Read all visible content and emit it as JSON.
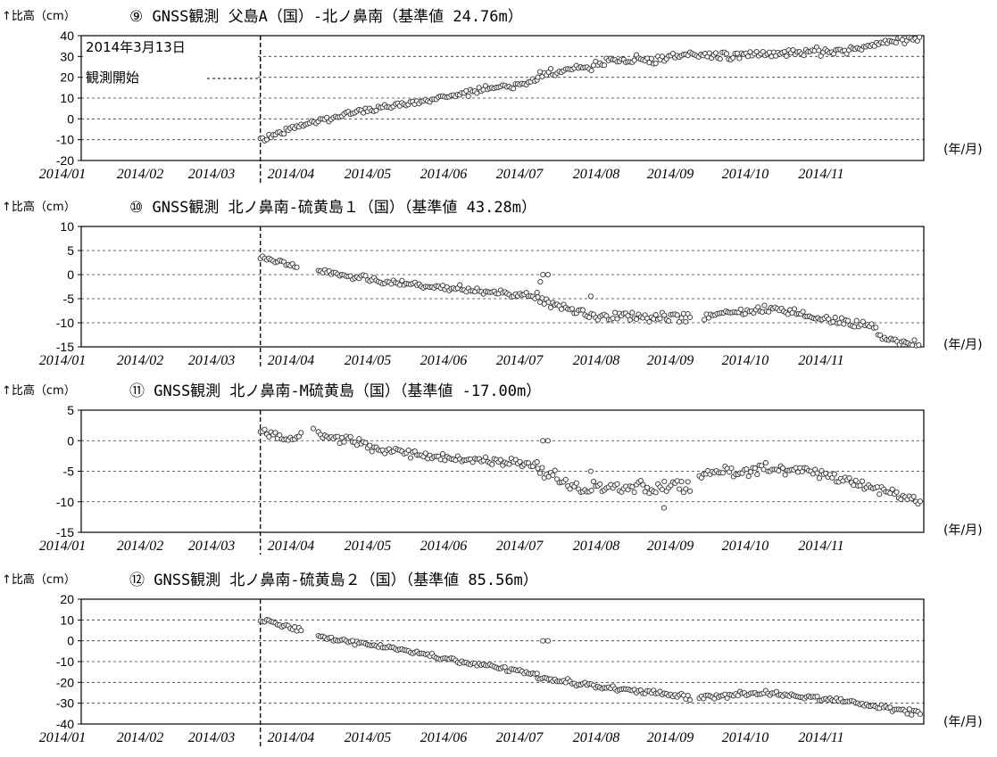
{
  "start_annotation": {
    "line1": "2014年3月13日",
    "line2": "観測開始"
  },
  "chart_data": [
    {
      "type": "scatter",
      "marker": "▯",
      "title": "⑨ GNSS観測 父島A（国）-北ノ鼻南（基準値 24.76m）",
      "ylabel": "↑比高（cm）",
      "xunit": "(年/月)",
      "x_ticks": [
        "2014/01",
        "2014/02",
        "2014/03",
        "2014/04",
        "2014/05",
        "2014/06",
        "2014/07",
        "2014/08",
        "2014/09",
        "2014/10",
        "2014/11"
      ],
      "y_ticks": [
        40,
        30,
        20,
        10,
        0,
        -10,
        -20
      ],
      "ylim": [
        -20,
        40
      ],
      "xlim": [
        "2014-01-01",
        "2014-12-01"
      ],
      "grid": "horizontal dashed",
      "observation_start": "2014-03-13",
      "series": [
        {
          "segments": [
            {
              "start": "2014-03-13",
              "end": "2014-07-01",
              "points": [
                [
                  "2014-03-13",
                  -10
                ],
                [
                  "2014-03-25",
                  -5
                ],
                [
                  "2014-04-01",
                  -2
                ],
                [
                  "2014-04-15",
                  2
                ],
                [
                  "2014-05-01",
                  6
                ],
                [
                  "2014-05-15",
                  8
                ],
                [
                  "2014-06-01",
                  12
                ],
                [
                  "2014-06-15",
                  15
                ],
                [
                  "2014-07-01",
                  18
                ]
              ],
              "noise": 1.2
            },
            {
              "start": "2014-07-01",
              "end": "2014-11-30",
              "points": [
                [
                  "2014-07-01",
                  21
                ],
                [
                  "2014-07-20",
                  25
                ],
                [
                  "2014-08-01",
                  28
                ],
                [
                  "2014-08-20",
                  29
                ],
                [
                  "2014-09-01",
                  32
                ],
                [
                  "2014-09-15",
                  30
                ],
                [
                  "2014-10-01",
                  31
                ],
                [
                  "2014-10-15",
                  32
                ],
                [
                  "2014-11-01",
                  33
                ],
                [
                  "2014-11-15",
                  36
                ],
                [
                  "2014-11-30",
                  40
                ]
              ],
              "noise": 1.5
            }
          ]
        }
      ]
    },
    {
      "type": "scatter",
      "marker": "▯",
      "title": "⑩ GNSS観測 北ノ鼻南-硫黄島１（国）（基準値 43.28m）",
      "ylabel": "↑比高（cm）",
      "xunit": "(年/月)",
      "x_ticks": [
        "2014/01",
        "2014/02",
        "2014/03",
        "2014/04",
        "2014/05",
        "2014/06",
        "2014/07",
        "2014/08",
        "2014/09",
        "2014/10",
        "2014/11"
      ],
      "y_ticks": [
        10,
        5,
        0,
        -5,
        -10,
        -15
      ],
      "ylim": [
        -15,
        10
      ],
      "xlim": [
        "2014-01-01",
        "2014-12-01"
      ],
      "grid": "horizontal dashed",
      "observation_start": "2014-03-13",
      "series": [
        {
          "segments": [
            {
              "start": "2014-03-13",
              "end": "2014-03-28",
              "points": [
                [
                  "2014-03-13",
                  3.5
                ],
                [
                  "2014-03-28",
                  1.5
                ]
              ],
              "noise": 0.5
            },
            {
              "start": "2014-04-05",
              "end": "2014-07-01",
              "points": [
                [
                  "2014-04-05",
                  0.8
                ],
                [
                  "2014-05-01",
                  -1.5
                ],
                [
                  "2014-06-01",
                  -3
                ],
                [
                  "2014-07-01",
                  -4.5
                ]
              ],
              "noise": 0.5
            },
            {
              "start": "2014-07-01",
              "end": "2014-08-31",
              "points": [
                [
                  "2014-07-01",
                  -5
                ],
                [
                  "2014-07-20",
                  -8.5
                ],
                [
                  "2014-08-31",
                  -9
                ]
              ],
              "noise": 0.8
            },
            {
              "start": "2014-09-05",
              "end": "2014-11-30",
              "points": [
                [
                  "2014-09-05",
                  -8.5
                ],
                [
                  "2014-10-01",
                  -7
                ],
                [
                  "2014-10-15",
                  -8.5
                ],
                [
                  "2014-11-10",
                  -10.5
                ],
                [
                  "2014-11-15",
                  -13
                ],
                [
                  "2014-11-30",
                  -15
                ]
              ],
              "noise": 0.7
            }
          ],
          "extra_points": [
            [
              "2014-07-03",
              0
            ],
            [
              "2014-07-05",
              0
            ],
            [
              "2014-07-02",
              -1.5
            ],
            [
              "2014-07-22",
              -4.5
            ]
          ]
        }
      ]
    },
    {
      "type": "scatter",
      "marker": "▯",
      "title": "⑪ GNSS観測 北ノ鼻南-M硫黄島（国）（基準値 -17.00m）",
      "ylabel": "↑比高（cm）",
      "xunit": "(年/月)",
      "x_ticks": [
        "2014/01",
        "2014/02",
        "2014/03",
        "2014/04",
        "2014/05",
        "2014/06",
        "2014/07",
        "2014/08",
        "2014/09",
        "2014/10",
        "2014/11"
      ],
      "y_ticks": [
        5,
        0,
        -5,
        -10,
        -15
      ],
      "ylim": [
        -15,
        5
      ],
      "xlim": [
        "2014-01-01",
        "2014-12-01"
      ],
      "grid": "horizontal dashed",
      "observation_start": "2014-03-13",
      "series": [
        {
          "segments": [
            {
              "start": "2014-03-13",
              "end": "2014-03-30",
              "points": [
                [
                  "2014-03-13",
                  2
                ],
                [
                  "2014-03-22",
                  0
                ],
                [
                  "2014-03-30",
                  1
                ]
              ],
              "noise": 0.6
            },
            {
              "start": "2014-04-05",
              "end": "2014-07-01",
              "points": [
                [
                  "2014-04-05",
                  1
                ],
                [
                  "2014-05-01",
                  -1.5
                ],
                [
                  "2014-06-01",
                  -3
                ],
                [
                  "2014-07-01",
                  -4
                ]
              ],
              "noise": 0.6
            },
            {
              "start": "2014-07-01",
              "end": "2014-08-31",
              "points": [
                [
                  "2014-07-01",
                  -5
                ],
                [
                  "2014-07-20",
                  -8
                ],
                [
                  "2014-08-31",
                  -7.5
                ]
              ],
              "noise": 0.9
            },
            {
              "start": "2014-09-03",
              "end": "2014-11-30",
              "points": [
                [
                  "2014-09-03",
                  -5.5
                ],
                [
                  "2014-10-01",
                  -4.5
                ],
                [
                  "2014-10-15",
                  -5
                ],
                [
                  "2014-11-01",
                  -6.5
                ],
                [
                  "2014-11-30",
                  -10
                ]
              ],
              "noise": 0.7
            }
          ],
          "extra_points": [
            [
              "2014-07-03",
              0
            ],
            [
              "2014-07-05",
              0
            ],
            [
              "2014-07-22",
              -5
            ],
            [
              "2014-08-20",
              -11
            ],
            [
              "2014-04-03",
              2
            ]
          ]
        }
      ]
    },
    {
      "type": "scatter",
      "marker": "▯",
      "title": "⑫ GNSS観測 北ノ鼻南-硫黄島２（国）（基準値 85.56m）",
      "ylabel": "↑比高（cm）",
      "xunit": "(年/月)",
      "x_ticks": [
        "2014/01",
        "2014/02",
        "2014/03",
        "2014/04",
        "2014/05",
        "2014/06",
        "2014/07",
        "2014/08",
        "2014/09",
        "2014/10",
        "2014/11"
      ],
      "y_ticks": [
        20,
        10,
        0,
        -10,
        -20,
        -30,
        -40
      ],
      "ylim": [
        -40,
        20
      ],
      "xlim": [
        "2014-01-01",
        "2014-12-01"
      ],
      "grid": "horizontal dashed",
      "observation_start": "2014-03-13",
      "series": [
        {
          "segments": [
            {
              "start": "2014-03-13",
              "end": "2014-03-30",
              "points": [
                [
                  "2014-03-13",
                  10
                ],
                [
                  "2014-03-30",
                  5
                ]
              ],
              "noise": 0.8
            },
            {
              "start": "2014-04-05",
              "end": "2014-07-01",
              "points": [
                [
                  "2014-04-05",
                  2
                ],
                [
                  "2014-05-01",
                  -3
                ],
                [
                  "2014-06-01",
                  -10
                ],
                [
                  "2014-07-01",
                  -16
                ]
              ],
              "noise": 0.8
            },
            {
              "start": "2014-07-01",
              "end": "2014-08-31",
              "points": [
                [
                  "2014-07-01",
                  -18
                ],
                [
                  "2014-08-01",
                  -23
                ],
                [
                  "2014-08-31",
                  -27
                ]
              ],
              "noise": 1.0
            },
            {
              "start": "2014-09-03",
              "end": "2014-11-30",
              "points": [
                [
                  "2014-09-03",
                  -27
                ],
                [
                  "2014-10-01",
                  -25
                ],
                [
                  "2014-10-15",
                  -27
                ],
                [
                  "2014-11-01",
                  -29
                ],
                [
                  "2014-11-15",
                  -32
                ],
                [
                  "2014-11-30",
                  -35
                ]
              ],
              "noise": 1.0
            }
          ],
          "extra_points": [
            [
              "2014-07-03",
              0
            ],
            [
              "2014-07-05",
              0
            ]
          ]
        }
      ]
    }
  ]
}
